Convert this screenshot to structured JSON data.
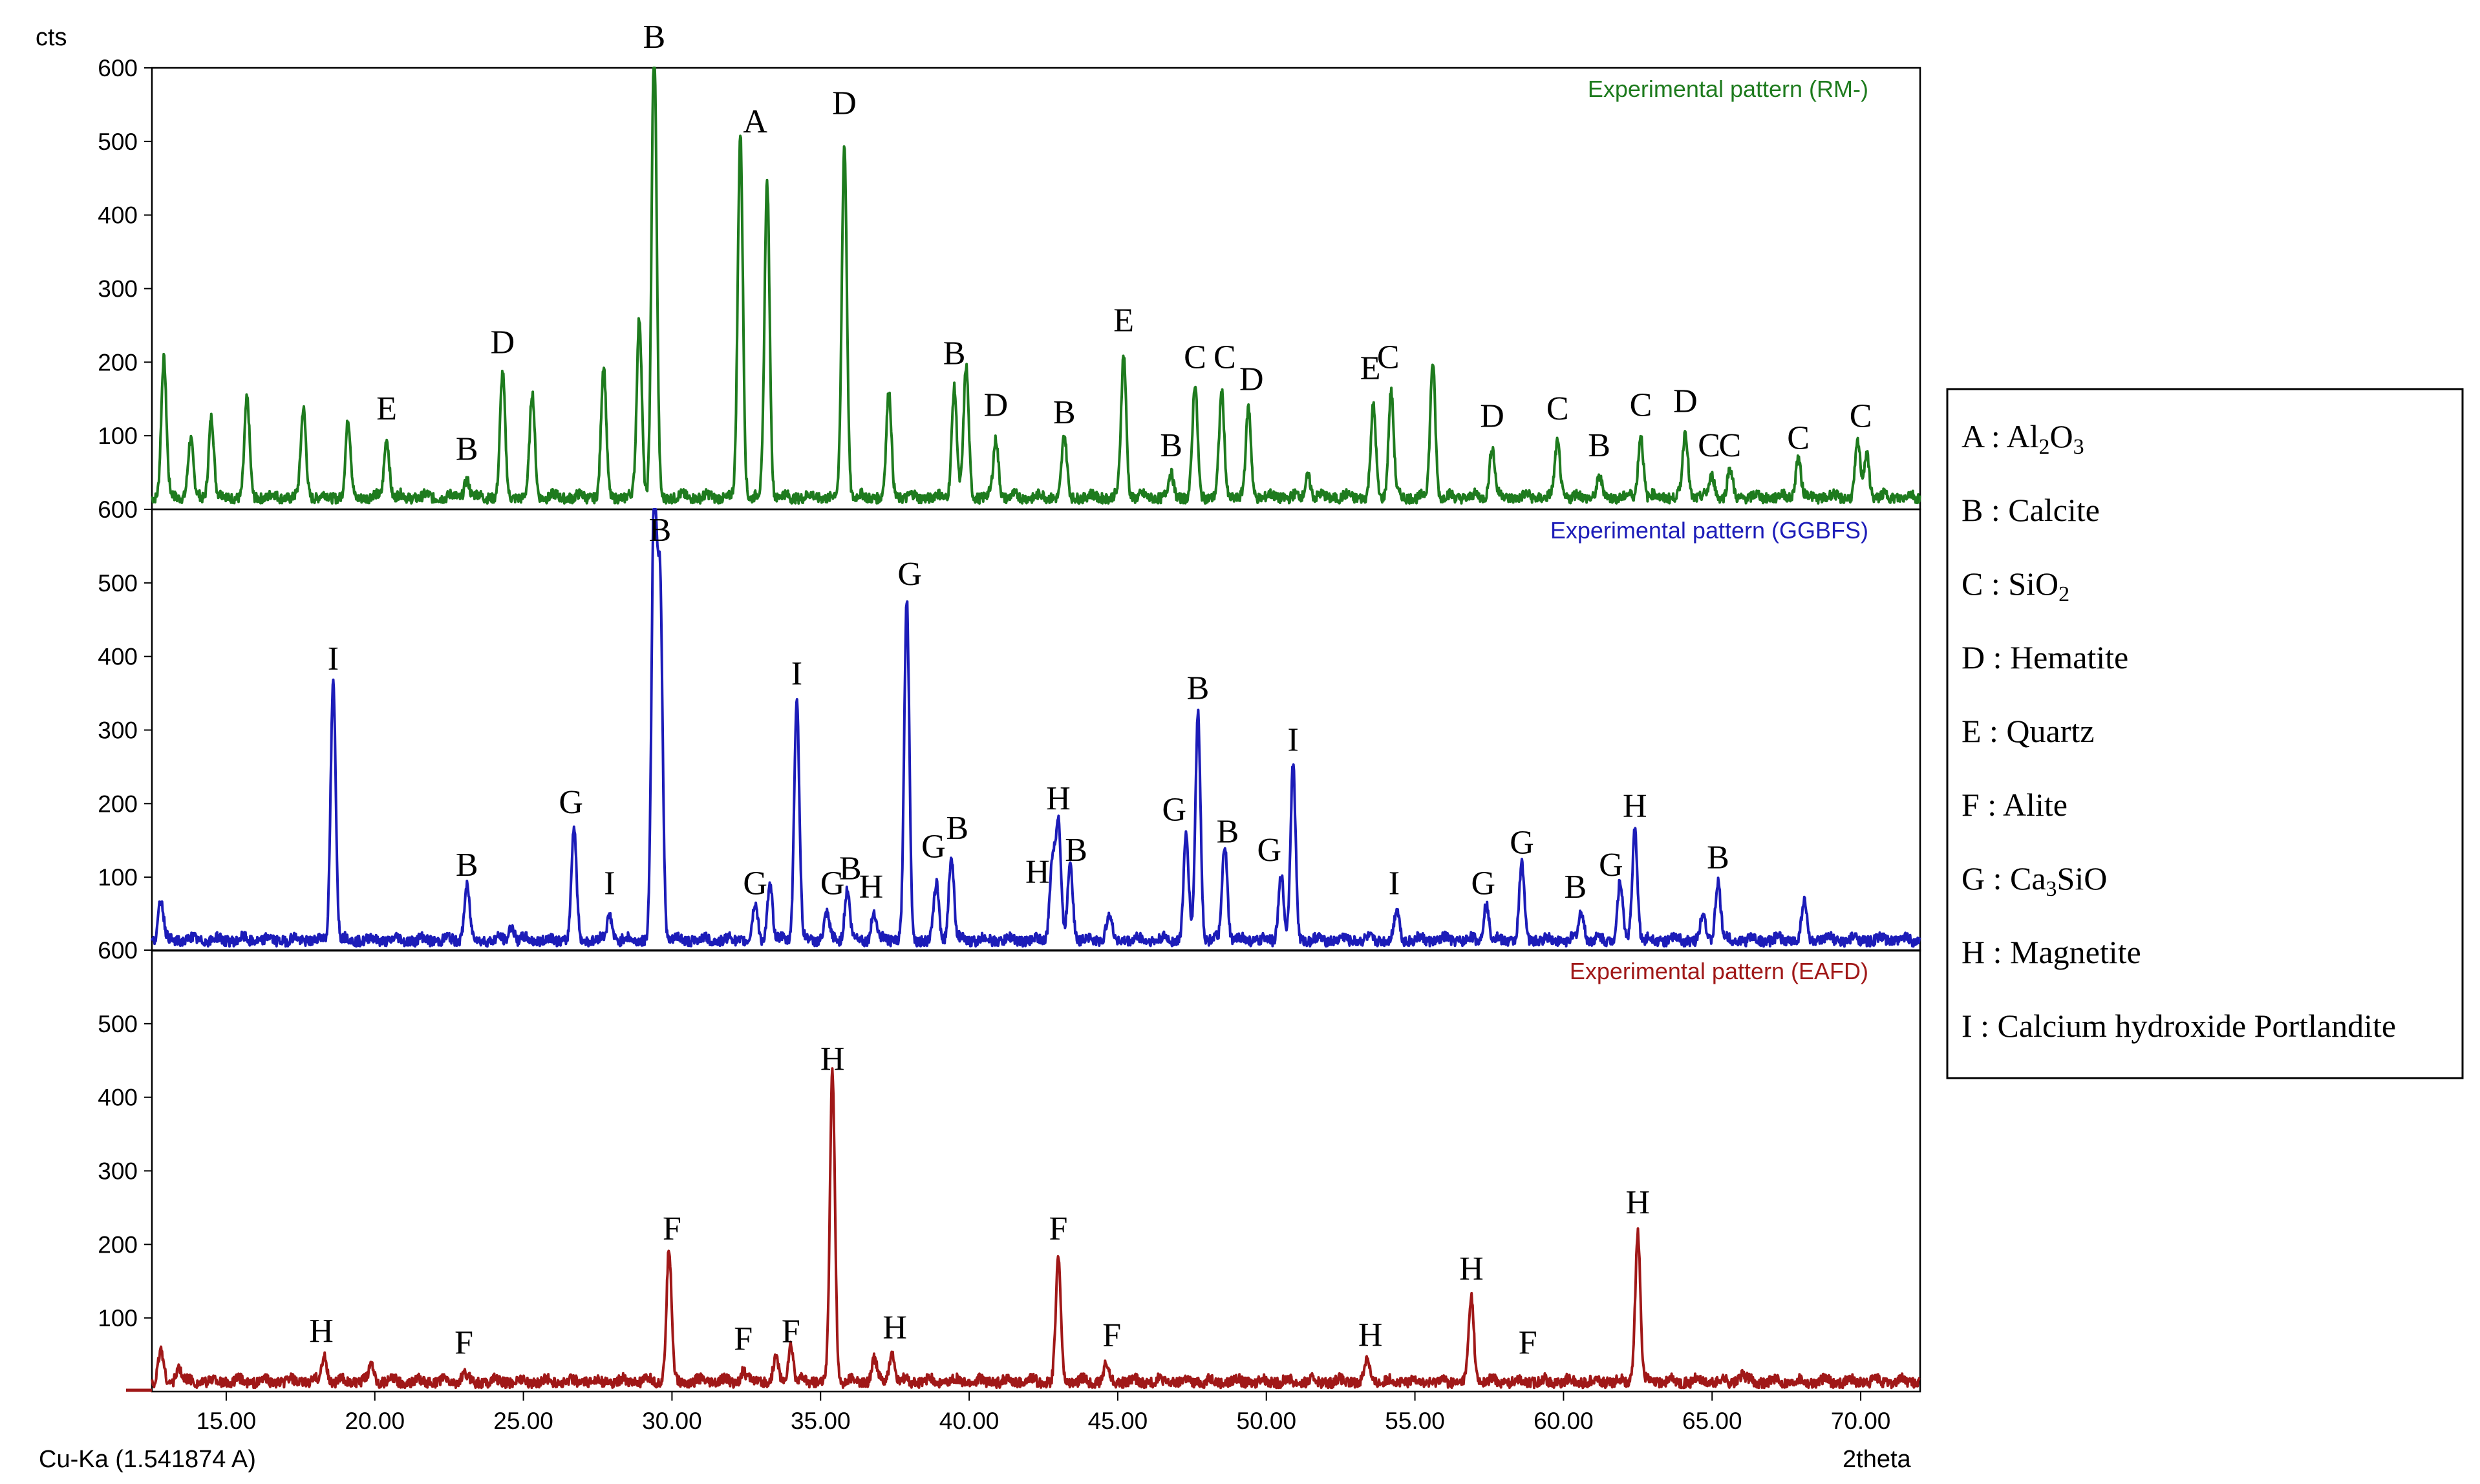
{
  "chart_data": {
    "type": "line",
    "ylabel": "cts",
    "xlabel": "2theta",
    "wavelength_label": "Cu-Ka (1.541874 A)",
    "xlim": [
      12.5,
      72.0
    ],
    "ylim": [
      0,
      600
    ],
    "x_ticks": [
      "15.00",
      "20.00",
      "25.00",
      "30.00",
      "35.00",
      "40.00",
      "45.00",
      "50.00",
      "55.00",
      "60.00",
      "65.00",
      "70.00"
    ],
    "y_ticks": [
      "100",
      "200",
      "300",
      "400",
      "500",
      "600"
    ],
    "series": [
      {
        "name": "Experimental pattern (RM-)",
        "color": "#1e7b1e",
        "baseline": 8,
        "peaks": [
          [
            12.9,
            190
          ],
          [
            13.8,
            80
          ],
          [
            14.5,
            110
          ],
          [
            15.7,
            130
          ],
          [
            17.6,
            120
          ],
          [
            19.1,
            100
          ],
          [
            20.4,
            80
          ],
          [
            23.1,
            25
          ],
          [
            24.3,
            165
          ],
          [
            25.3,
            140
          ],
          [
            27.7,
            175
          ],
          [
            28.9,
            245
          ],
          [
            29.4,
            620
          ],
          [
            32.3,
            495
          ],
          [
            33.2,
            430
          ],
          [
            35.8,
            480
          ],
          [
            37.3,
            140
          ],
          [
            39.5,
            150
          ],
          [
            39.9,
            175
          ],
          [
            40.9,
            80
          ],
          [
            43.2,
            80
          ],
          [
            45.2,
            195
          ],
          [
            46.8,
            30
          ],
          [
            47.6,
            150
          ],
          [
            48.5,
            140
          ],
          [
            49.4,
            120
          ],
          [
            51.4,
            30
          ],
          [
            53.6,
            120
          ],
          [
            54.2,
            145
          ],
          [
            55.6,
            185
          ],
          [
            57.6,
            70
          ],
          [
            59.8,
            75
          ],
          [
            61.2,
            25
          ],
          [
            62.6,
            85
          ],
          [
            64.1,
            90
          ],
          [
            65.0,
            30
          ],
          [
            65.6,
            35
          ],
          [
            67.9,
            55
          ],
          [
            69.9,
            70
          ],
          [
            70.2,
            60
          ]
        ],
        "labels": [
          {
            "text": "B",
            "x": 29.4,
            "y": 620
          },
          {
            "text": "A",
            "x": 32.8,
            "y": 505
          },
          {
            "text": "D",
            "x": 35.8,
            "y": 530
          },
          {
            "text": "E",
            "x": 20.4,
            "y": 115
          },
          {
            "text": "B",
            "x": 23.1,
            "y": 60
          },
          {
            "text": "D",
            "x": 24.3,
            "y": 205
          },
          {
            "text": "B",
            "x": 39.5,
            "y": 190
          },
          {
            "text": "D",
            "x": 40.9,
            "y": 120
          },
          {
            "text": "B",
            "x": 43.2,
            "y": 110
          },
          {
            "text": "E",
            "x": 45.2,
            "y": 235
          },
          {
            "text": "B",
            "x": 46.8,
            "y": 65
          },
          {
            "text": "C",
            "x": 47.6,
            "y": 185
          },
          {
            "text": "C",
            "x": 48.6,
            "y": 185
          },
          {
            "text": "D",
            "x": 49.5,
            "y": 155
          },
          {
            "text": "E",
            "x": 53.5,
            "y": 170
          },
          {
            "text": "C",
            "x": 54.1,
            "y": 185
          },
          {
            "text": "D",
            "x": 57.6,
            "y": 105
          },
          {
            "text": "C",
            "x": 59.8,
            "y": 115
          },
          {
            "text": "B",
            "x": 61.2,
            "y": 65
          },
          {
            "text": "C",
            "x": 62.6,
            "y": 120
          },
          {
            "text": "D",
            "x": 64.1,
            "y": 125
          },
          {
            "text": "C",
            "x": 64.9,
            "y": 65
          },
          {
            "text": "C",
            "x": 65.6,
            "y": 65
          },
          {
            "text": "C",
            "x": 67.9,
            "y": 75
          },
          {
            "text": "C",
            "x": 70.0,
            "y": 105
          }
        ]
      },
      {
        "name": "Experimental pattern (GGBFS)",
        "color": "#1c1cb8",
        "baseline": 6,
        "peaks": [
          [
            12.8,
            55
          ],
          [
            18.6,
            350
          ],
          [
            23.1,
            75
          ],
          [
            24.6,
            20
          ],
          [
            26.7,
            150
          ],
          [
            27.9,
            35
          ],
          [
            29.4,
            600
          ],
          [
            29.6,
            480
          ],
          [
            32.8,
            45
          ],
          [
            33.3,
            75
          ],
          [
            34.2,
            330
          ],
          [
            35.2,
            35
          ],
          [
            35.9,
            70
          ],
          [
            36.8,
            40
          ],
          [
            37.9,
            460
          ],
          [
            38.9,
            75
          ],
          [
            39.4,
            115
          ],
          [
            42.8,
            110
          ],
          [
            43.0,
            160
          ],
          [
            43.4,
            110
          ],
          [
            44.7,
            35
          ],
          [
            47.3,
            140
          ],
          [
            47.7,
            310
          ],
          [
            48.6,
            130
          ],
          [
            50.5,
            90
          ],
          [
            50.9,
            235
          ],
          [
            54.4,
            40
          ],
          [
            57.4,
            50
          ],
          [
            58.6,
            100
          ],
          [
            60.6,
            40
          ],
          [
            61.9,
            80
          ],
          [
            62.4,
            150
          ],
          [
            64.7,
            35
          ],
          [
            65.2,
            80
          ],
          [
            68.1,
            50
          ]
        ],
        "labels": [
          {
            "text": "B",
            "x": 29.6,
            "y": 550
          },
          {
            "text": "I",
            "x": 18.6,
            "y": 375
          },
          {
            "text": "B",
            "x": 23.1,
            "y": 95
          },
          {
            "text": "G",
            "x": 26.6,
            "y": 180
          },
          {
            "text": "I",
            "x": 27.9,
            "y": 70
          },
          {
            "text": "I",
            "x": 34.2,
            "y": 355
          },
          {
            "text": "G",
            "x": 32.8,
            "y": 70
          },
          {
            "text": "G",
            "x": 35.4,
            "y": 70
          },
          {
            "text": "B",
            "x": 36.0,
            "y": 90
          },
          {
            "text": "H",
            "x": 36.7,
            "y": 65
          },
          {
            "text": "G",
            "x": 38.0,
            "y": 490
          },
          {
            "text": "G",
            "x": 38.8,
            "y": 120
          },
          {
            "text": "B",
            "x": 39.6,
            "y": 145
          },
          {
            "text": "H",
            "x": 42.3,
            "y": 85
          },
          {
            "text": "H",
            "x": 43.0,
            "y": 185
          },
          {
            "text": "B",
            "x": 43.6,
            "y": 115
          },
          {
            "text": "G",
            "x": 46.9,
            "y": 170
          },
          {
            "text": "B",
            "x": 47.7,
            "y": 335
          },
          {
            "text": "B",
            "x": 48.7,
            "y": 140
          },
          {
            "text": "G",
            "x": 50.1,
            "y": 115
          },
          {
            "text": "I",
            "x": 50.9,
            "y": 265
          },
          {
            "text": "I",
            "x": 54.3,
            "y": 70
          },
          {
            "text": "G",
            "x": 57.3,
            "y": 70
          },
          {
            "text": "G",
            "x": 58.6,
            "y": 125
          },
          {
            "text": "B",
            "x": 60.4,
            "y": 65
          },
          {
            "text": "G",
            "x": 61.6,
            "y": 95
          },
          {
            "text": "H",
            "x": 62.4,
            "y": 175
          },
          {
            "text": "B",
            "x": 65.2,
            "y": 105
          }
        ]
      },
      {
        "name": "Experimental pattern (EAFD)",
        "color": "#a01818",
        "baseline": 5,
        "peaks": [
          [
            12.8,
            40
          ],
          [
            13.4,
            20
          ],
          [
            18.3,
            35
          ],
          [
            19.9,
            25
          ],
          [
            23.0,
            10
          ],
          [
            29.9,
            180
          ],
          [
            32.4,
            15
          ],
          [
            33.5,
            30
          ],
          [
            34.0,
            50
          ],
          [
            35.4,
            420
          ],
          [
            36.8,
            30
          ],
          [
            37.4,
            40
          ],
          [
            43.0,
            165
          ],
          [
            44.6,
            20
          ],
          [
            53.4,
            30
          ],
          [
            56.9,
            115
          ],
          [
            62.5,
            205
          ],
          [
            66.0,
            10
          ]
        ],
        "labels": [
          {
            "text": "H",
            "x": 18.2,
            "y": 60
          },
          {
            "text": "F",
            "x": 23.0,
            "y": 45
          },
          {
            "text": "F",
            "x": 30.0,
            "y": 200
          },
          {
            "text": "F",
            "x": 32.4,
            "y": 50
          },
          {
            "text": "F",
            "x": 34.0,
            "y": 60
          },
          {
            "text": "H",
            "x": 35.4,
            "y": 430
          },
          {
            "text": "H",
            "x": 37.5,
            "y": 65
          },
          {
            "text": "F",
            "x": 43.0,
            "y": 200
          },
          {
            "text": "F",
            "x": 44.8,
            "y": 55
          },
          {
            "text": "H",
            "x": 53.5,
            "y": 55
          },
          {
            "text": "H",
            "x": 56.9,
            "y": 145
          },
          {
            "text": "F",
            "x": 58.8,
            "y": 45
          },
          {
            "text": "H",
            "x": 62.5,
            "y": 235
          }
        ]
      }
    ],
    "legend": {
      "position": "right",
      "entries": [
        {
          "key": "A",
          "sep": " : ",
          "name": "Al",
          "sub1": "2",
          "mid": "O",
          "sub2": "3",
          "tail": ""
        },
        {
          "key": "B",
          "sep": " : ",
          "name": "Calcite",
          "sub1": "",
          "mid": "",
          "sub2": "",
          "tail": ""
        },
        {
          "key": "C",
          "sep": " : ",
          "name": "SiO",
          "sub1": "2",
          "mid": "",
          "sub2": "",
          "tail": ""
        },
        {
          "key": "D",
          "sep": " : ",
          "name": "Hematite",
          "sub1": "",
          "mid": "",
          "sub2": "",
          "tail": ""
        },
        {
          "key": "E",
          "sep": " : ",
          "name": "Quartz",
          "sub1": "",
          "mid": "",
          "sub2": "",
          "tail": ""
        },
        {
          "key": "F",
          "sep": " : ",
          "name": "Alite",
          "sub1": "",
          "mid": "",
          "sub2": "",
          "tail": ""
        },
        {
          "key": "G",
          "sep": " : ",
          "name": "Ca",
          "sub1": "3",
          "mid": "SiO",
          "sub2": "",
          "tail": ""
        },
        {
          "key": "H",
          "sep": " : ",
          "name": "Magnetite",
          "sub1": "",
          "mid": "",
          "sub2": "",
          "tail": ""
        },
        {
          "key": "I",
          "sep": " : ",
          "name": "Calcium hydroxide Portlandite",
          "sub1": "",
          "mid": "",
          "sub2": "",
          "tail": ""
        }
      ]
    }
  }
}
